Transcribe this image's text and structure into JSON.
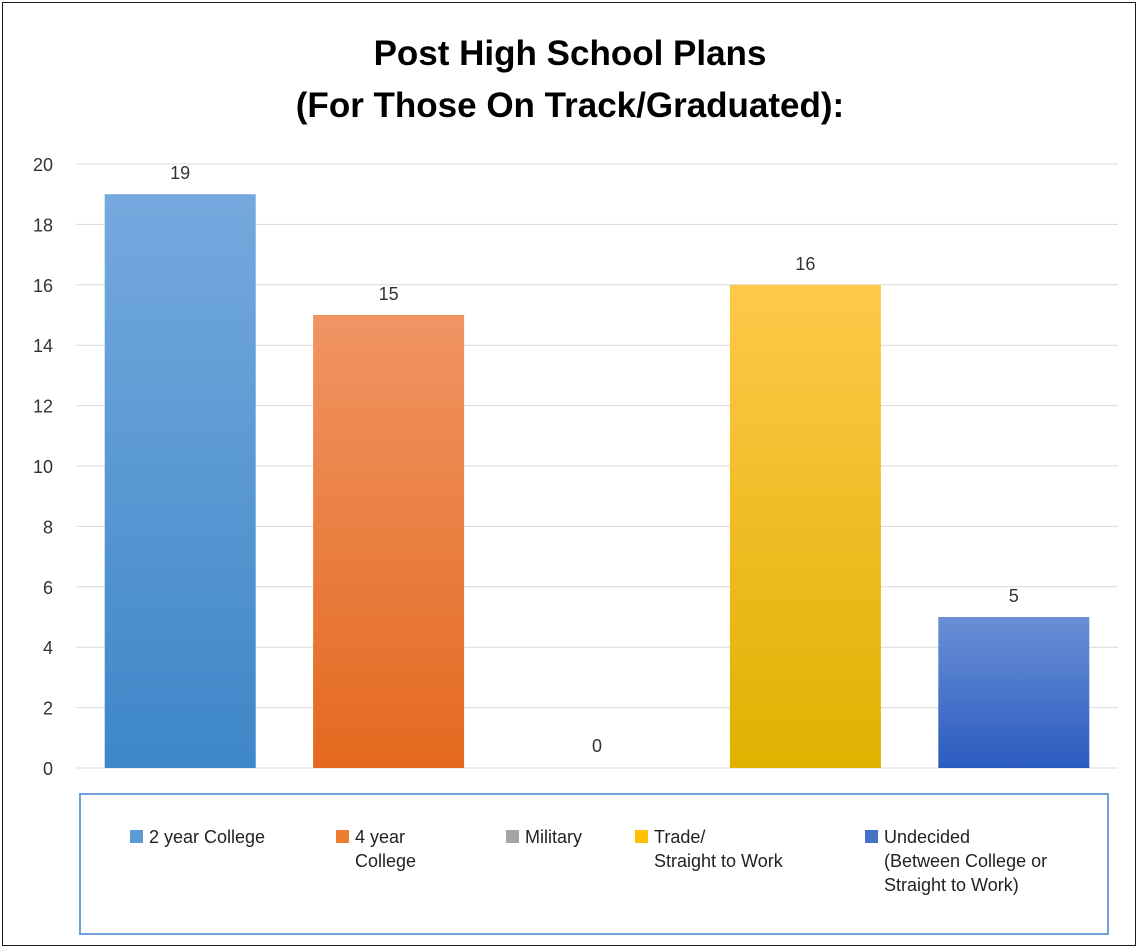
{
  "chart_data": {
    "type": "bar",
    "title_lines": [
      "Post High School Plans",
      "(For Those On Track/Graduated):"
    ],
    "categories": [
      "2 year College",
      "4 year\nCollege",
      "Military",
      "Trade/\nStraight to Work",
      "Undecided\n(Between College or\nStraight to Work)"
    ],
    "values": [
      19,
      15,
      0,
      16,
      5
    ],
    "data_labels": [
      "19",
      "15",
      "0",
      "16",
      "5"
    ],
    "y_ticks": [
      "0",
      "2",
      "4",
      "6",
      "8",
      "10",
      "12",
      "14",
      "16",
      "18",
      "20"
    ],
    "ylim": [
      0,
      20
    ],
    "grid": true,
    "legend_position": "bottom",
    "colors": [
      {
        "top": "#75a9de",
        "bottom": "#3e87c8"
      },
      {
        "top": "#f19464",
        "bottom": "#e4691f"
      },
      {
        "top": "#b0b0b0",
        "bottom": "#8a8a8a"
      },
      {
        "top": "#ffc84a",
        "bottom": "#e0b100"
      },
      {
        "top": "#6a8fd6",
        "bottom": "#2a5cbf"
      }
    ],
    "legend_swatch_colors": [
      "#5b9bd5",
      "#ed7d31",
      "#a5a5a5",
      "#ffc000",
      "#4472c4"
    ]
  }
}
